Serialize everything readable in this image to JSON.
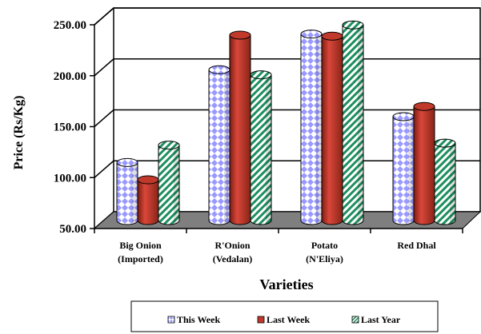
{
  "chart_data": {
    "type": "bar",
    "style": "3d-cylinder",
    "categories": [
      [
        "Big Onion",
        "(Imported)"
      ],
      [
        "R'Onion",
        "(Vedalan)"
      ],
      [
        "Potato",
        "(N'Eliya)"
      ],
      [
        "Red Dhal",
        ""
      ]
    ],
    "series": [
      {
        "name": "This Week",
        "values": [
          107,
          198,
          233,
          152
        ],
        "color": "#9999ff",
        "pattern": "diamond-checker"
      },
      {
        "name": "Last Week",
        "values": [
          90,
          232,
          231,
          162
        ],
        "color": "#c0392b",
        "pattern": "solid"
      },
      {
        "name": "Last Year",
        "values": [
          124,
          193,
          242,
          126
        ],
        "color": "#1e8f5e",
        "pattern": "diagonal-stripes"
      }
    ],
    "xlabel": "Varieties",
    "ylabel": "Price (Rs/Kg)",
    "ylim": [
      50,
      250
    ],
    "yticks": [
      "50.00",
      "100.00",
      "150.00",
      "200.00",
      "250.00"
    ],
    "grid": true,
    "legend_position": "bottom"
  }
}
